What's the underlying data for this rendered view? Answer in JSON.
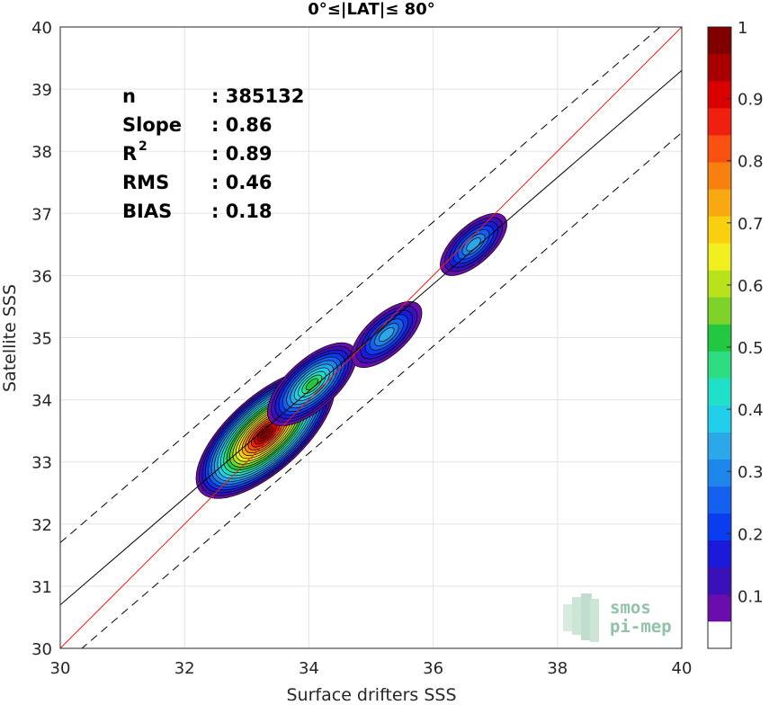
{
  "chart_data": {
    "type": "heatmap",
    "title": "0°≤|LAT|≤ 80°",
    "xlabel": "Surface drifters SSS",
    "ylabel": "Satellite SSS",
    "xlim": [
      30,
      40
    ],
    "ylim": [
      30,
      40
    ],
    "xticks": [
      "30",
      "32",
      "34",
      "36",
      "38",
      "40"
    ],
    "yticks": [
      "30",
      "31",
      "32",
      "33",
      "34",
      "35",
      "36",
      "37",
      "38",
      "39",
      "40"
    ],
    "grid": true,
    "stats": [
      {
        "label": "n",
        "value": ": 385132"
      },
      {
        "label": "Slope",
        "value": ": 0.86"
      },
      {
        "label": "R",
        "sup": "2",
        "value": ": 0.89"
      },
      {
        "label": "RMS",
        "value": ": 0.46"
      },
      {
        "label": "BIAS",
        "value": ": 0.18"
      }
    ],
    "lines": [
      {
        "name": "one-to-one",
        "color": "#e8201c",
        "style": "solid",
        "slope": 1,
        "intercept": 0
      },
      {
        "name": "regression",
        "color": "#000000",
        "style": "solid",
        "slope": 0.86,
        "intercept": 4.9
      },
      {
        "name": "upper-bound",
        "color": "#000000",
        "style": "dashed",
        "slope": 0.86,
        "intercept": 5.9
      },
      {
        "name": "lower-bound",
        "color": "#000000",
        "style": "dashed",
        "slope": 0.86,
        "intercept": 3.9
      }
    ],
    "density_peaks": [
      {
        "x": 33.3,
        "y": 33.45,
        "density": 1.0
      },
      {
        "x": 34.05,
        "y": 34.25,
        "density": 0.52
      },
      {
        "x": 35.25,
        "y": 35.05,
        "density": 0.34
      },
      {
        "x": 36.65,
        "y": 36.5,
        "density": 0.3
      }
    ],
    "colorbar": {
      "ticks": [
        "0.1",
        "0.2",
        "0.3",
        "0.4",
        "0.5",
        "0.6",
        "0.7",
        "0.8",
        "0.9",
        "1"
      ],
      "range": [
        0,
        1
      ],
      "levels": [
        "#ffffff",
        "#6a0dad",
        "#3a10b8",
        "#1a1ad8",
        "#0a3cf0",
        "#1560ee",
        "#1e86ea",
        "#2aa8e8",
        "#22cfea",
        "#1fe0c8",
        "#2edc82",
        "#22c840",
        "#7fd22a",
        "#b8e21a",
        "#f0f020",
        "#f8d010",
        "#f8a810",
        "#f88010",
        "#f85010",
        "#f02010",
        "#d80000",
        "#a80000",
        "#800000"
      ]
    },
    "logo": [
      "smos",
      "pi-mep"
    ]
  }
}
